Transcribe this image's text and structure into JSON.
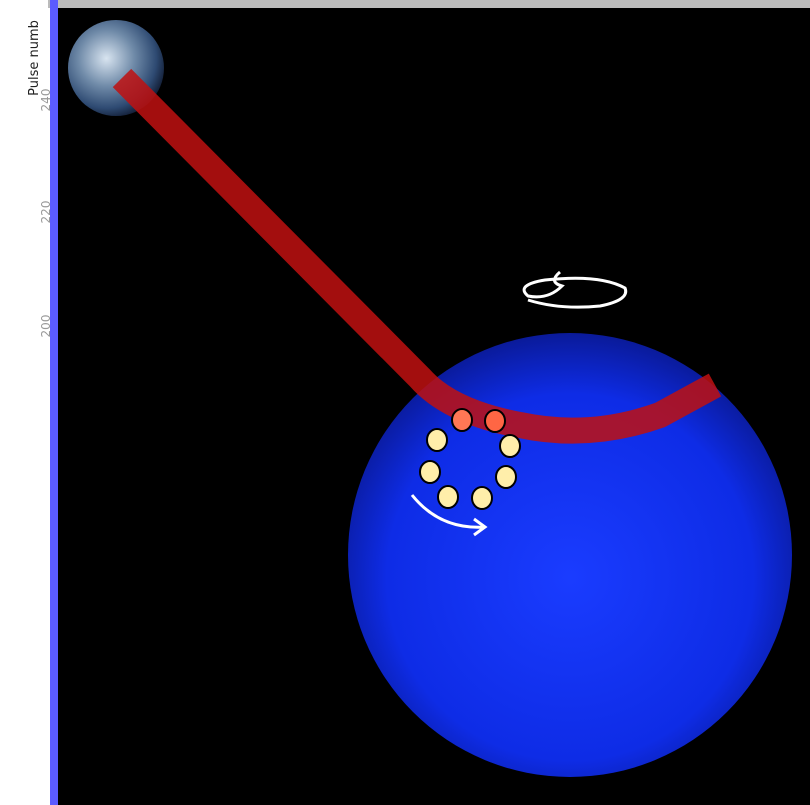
{
  "axis_fragment": {
    "label": "Pulse numb",
    "ticks": [
      "240",
      "220",
      "200"
    ]
  }
}
